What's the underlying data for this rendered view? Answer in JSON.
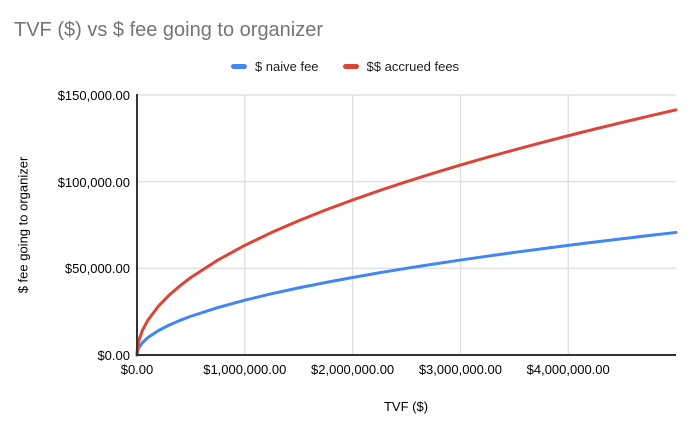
{
  "chart_data": {
    "type": "line",
    "title": "TVF ($) vs $ fee going to organizer",
    "xlabel": "TVF ($)",
    "ylabel": "$ fee going to organizer",
    "xlim": [
      0,
      5000000
    ],
    "ylim": [
      0,
      150000
    ],
    "grid": true,
    "legend_position": "top-center",
    "background_color": "#ffffff",
    "title_color": "#757575",
    "gridline_color": "#e0e0e0",
    "axis_line_color": "#333333",
    "x_tick_values": [
      0,
      1000000,
      2000000,
      3000000,
      4000000
    ],
    "x_tick_labels": [
      "$0.00",
      "$1,000,000.00",
      "$2,000,000.00",
      "$3,000,000.00",
      "$4,000,000.00"
    ],
    "y_tick_values": [
      0,
      50000,
      100000,
      150000
    ],
    "y_tick_labels": [
      "$0.00",
      "$50,000.00",
      "$100,000.00",
      "$150,000.00"
    ],
    "x": [
      0,
      5000,
      10000,
      20000,
      50000,
      100000,
      200000,
      300000,
      400000,
      500000,
      750000,
      1000000,
      1250000,
      1500000,
      1750000,
      2000000,
      2250000,
      2500000,
      2750000,
      3000000,
      3250000,
      3500000,
      3750000,
      4000000,
      4250000,
      4500000,
      4750000,
      5000000
    ],
    "series": [
      {
        "name": "$ naive fee",
        "color": "#4285F4",
        "values": [
          0,
          2236,
          3162,
          4472,
          7071,
          10000,
          14142,
          17321,
          20000,
          22361,
          27386,
          31623,
          35355,
          38730,
          41833,
          44721,
          47434,
          50000,
          52440,
          54772,
          57009,
          59161,
          61237,
          63246,
          65192,
          67082,
          68920,
          70711
        ]
      },
      {
        "name": "$$ accrued fees",
        "color": "#DB4437",
        "values": [
          0,
          4472,
          6325,
          8944,
          14142,
          20000,
          28284,
          34641,
          40000,
          44721,
          54772,
          63246,
          70711,
          77460,
          83666,
          89443,
          94868,
          100000,
          104881,
          109545,
          114018,
          118322,
          122474,
          126491,
          130384,
          134164,
          137840,
          141421
        ]
      }
    ]
  }
}
